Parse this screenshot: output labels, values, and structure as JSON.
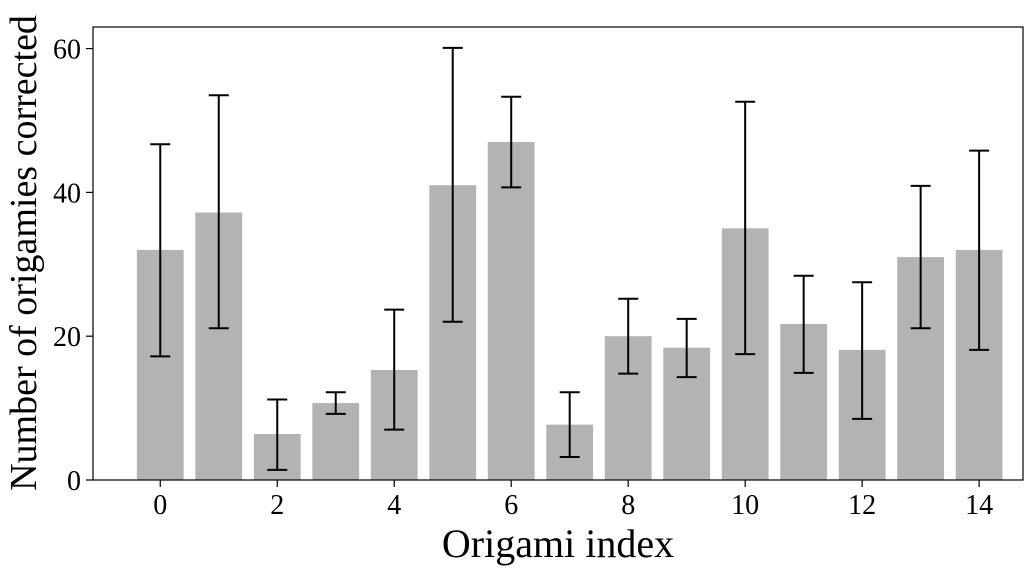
{
  "chart_data": {
    "type": "bar",
    "title": "",
    "xlabel": "Origami index",
    "ylabel": "Number of origamies corrected",
    "x": [
      0,
      1,
      2,
      3,
      4,
      5,
      6,
      7,
      8,
      9,
      10,
      11,
      12,
      13,
      14
    ],
    "values": [
      32,
      37.2,
      6.4,
      10.7,
      15.3,
      41,
      47,
      7.7,
      20,
      18.4,
      35,
      21.7,
      18.1,
      31,
      32
    ],
    "error_low": [
      17.2,
      21.1,
      1.4,
      9.2,
      7.0,
      22.0,
      40.7,
      3.2,
      14.8,
      14.3,
      17.5,
      14.9,
      8.5,
      21.1,
      18.1
    ],
    "error_high": [
      46.7,
      53.5,
      11.2,
      12.2,
      23.7,
      60.1,
      53.3,
      12.2,
      25.2,
      22.4,
      52.6,
      28.4,
      27.5,
      40.9,
      45.8
    ],
    "xticks": [
      0,
      2,
      4,
      6,
      8,
      10,
      12,
      14
    ],
    "yticks": [
      0,
      20,
      40,
      60
    ],
    "xlim": [
      -1.15,
      14.75
    ],
    "ylim": [
      0,
      63
    ],
    "bar_color": "#b3b3b3",
    "error_color": "#000000",
    "grid": false,
    "legend": "none"
  }
}
